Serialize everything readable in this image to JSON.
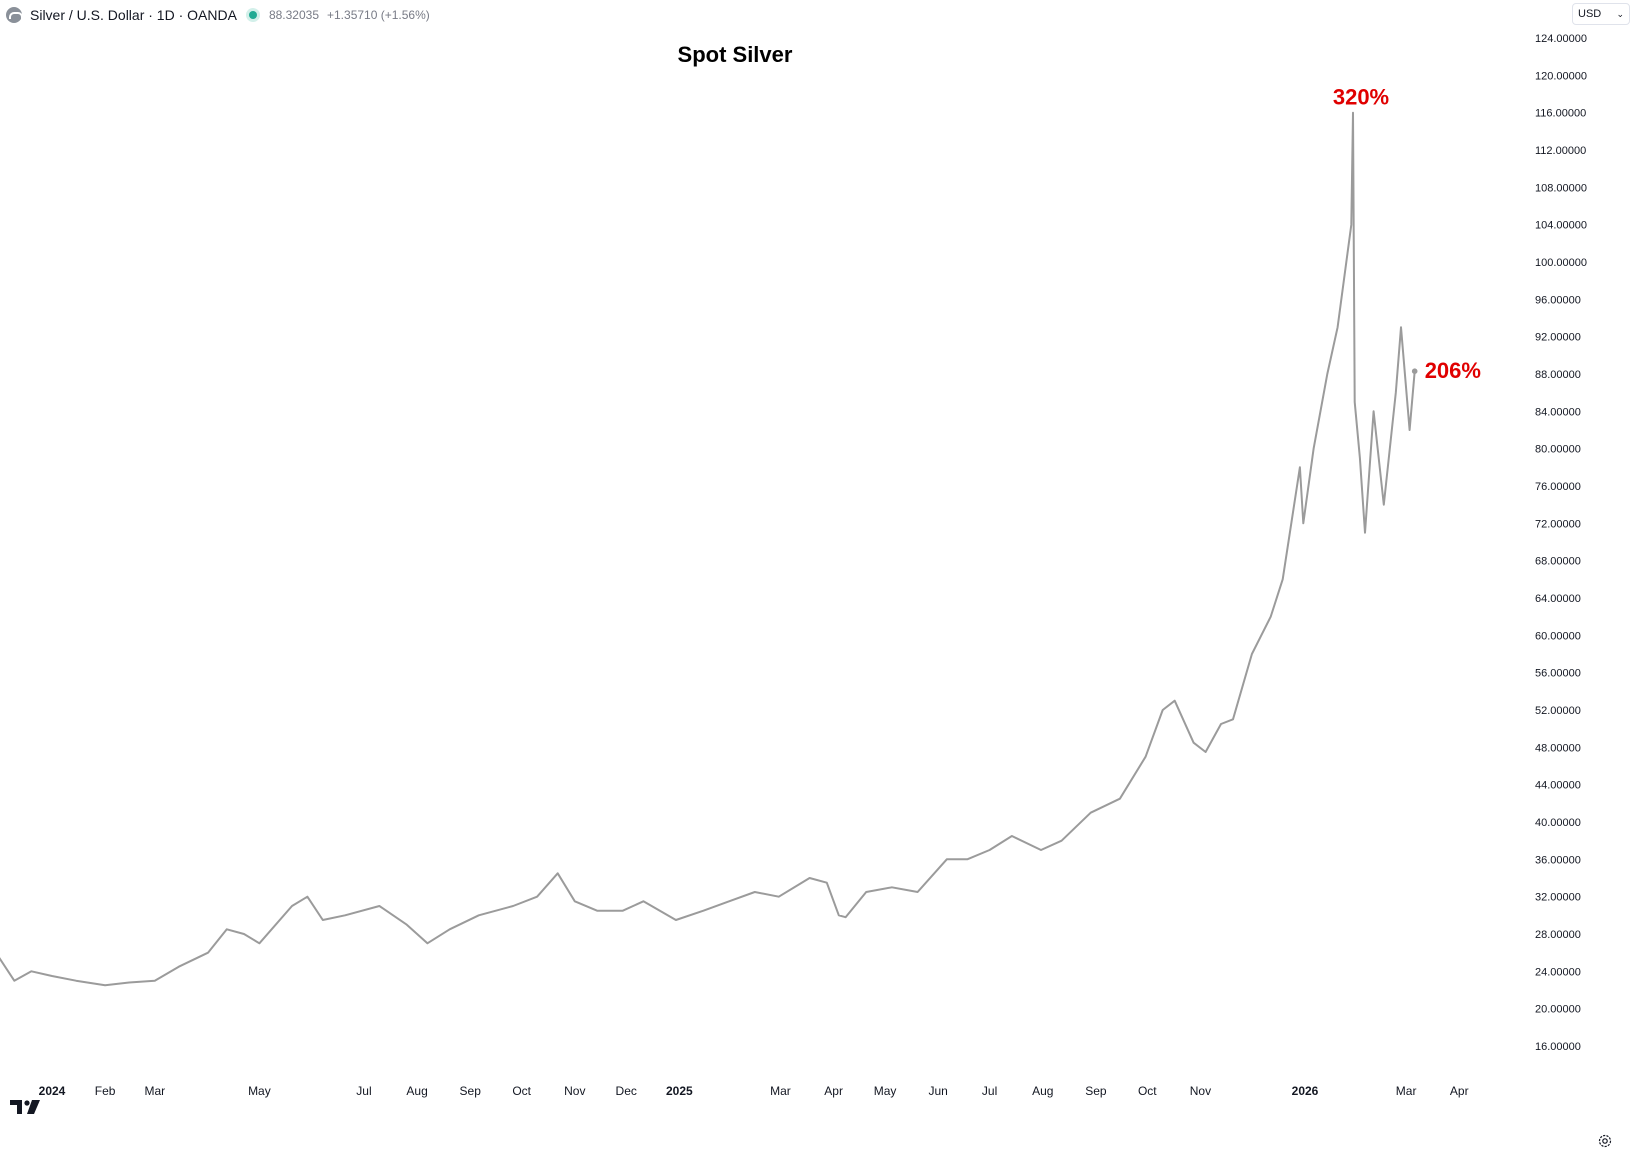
{
  "header": {
    "symbol": "Silver / U.S. Dollar · 1D · OANDA",
    "price": "88.32035",
    "change": "+1.35710 (+1.56%)",
    "status_color": "#22ab94"
  },
  "currency_select": {
    "value": "USD"
  },
  "icons": [
    "silver-logo-icon",
    "market-open-dot-icon",
    "chevron-down-icon",
    "tradingview-logo-icon",
    "settings-gear-icon"
  ],
  "chart_data": {
    "type": "line",
    "title": "Spot Silver",
    "line_color": "#9b9b9b",
    "ylim": [
      13.5,
      126
    ],
    "y_ticks": [
      "16.00000",
      "20.00000",
      "24.00000",
      "28.00000",
      "32.00000",
      "36.00000",
      "40.00000",
      "44.00000",
      "48.00000",
      "52.00000",
      "56.00000",
      "60.00000",
      "64.00000",
      "68.00000",
      "72.00000",
      "76.00000",
      "80.00000",
      "84.00000",
      "88.00000",
      "92.00000",
      "96.00000",
      "100.00000",
      "104.00000",
      "108.00000",
      "112.00000",
      "116.00000",
      "120.00000",
      "124.00000"
    ],
    "x_ticks": [
      {
        "label": "2024",
        "date": "2024-01-01",
        "bold": true
      },
      {
        "label": "Feb",
        "date": "2024-02-01",
        "bold": false
      },
      {
        "label": "Mar",
        "date": "2024-03-01",
        "bold": false
      },
      {
        "label": "May",
        "date": "2024-05-01",
        "bold": false
      },
      {
        "label": "Jul",
        "date": "2024-07-01",
        "bold": false
      },
      {
        "label": "Aug",
        "date": "2024-08-01",
        "bold": false
      },
      {
        "label": "Sep",
        "date": "2024-09-01",
        "bold": false
      },
      {
        "label": "Oct",
        "date": "2024-10-01",
        "bold": false
      },
      {
        "label": "Nov",
        "date": "2024-11-01",
        "bold": false
      },
      {
        "label": "Dec",
        "date": "2024-12-01",
        "bold": false
      },
      {
        "label": "2025",
        "date": "2025-01-01",
        "bold": true
      },
      {
        "label": "Mar",
        "date": "2025-03-01",
        "bold": false
      },
      {
        "label": "Apr",
        "date": "2025-04-01",
        "bold": false
      },
      {
        "label": "May",
        "date": "2025-05-01",
        "bold": false
      },
      {
        "label": "Jun",
        "date": "2025-06-01",
        "bold": false
      },
      {
        "label": "Jul",
        "date": "2025-07-01",
        "bold": false
      },
      {
        "label": "Aug",
        "date": "2025-08-01",
        "bold": false
      },
      {
        "label": "Sep",
        "date": "2025-09-01",
        "bold": false
      },
      {
        "label": "Oct",
        "date": "2025-10-01",
        "bold": false
      },
      {
        "label": "Nov",
        "date": "2025-11-01",
        "bold": false
      },
      {
        "label": "2026",
        "date": "2026-01-01",
        "bold": true
      },
      {
        "label": "Mar",
        "date": "2026-03-01",
        "bold": false
      },
      {
        "label": "Apr",
        "date": "2026-04-01",
        "bold": false
      }
    ],
    "series": [
      {
        "x": [
          "2023-12-01",
          "2023-12-10",
          "2023-12-20",
          "2024-01-01",
          "2024-01-15",
          "2024-02-01",
          "2024-02-15",
          "2024-03-01",
          "2024-03-15",
          "2024-04-01",
          "2024-04-12",
          "2024-04-22",
          "2024-05-01",
          "2024-05-20",
          "2024-05-29",
          "2024-06-07",
          "2024-06-20",
          "2024-07-10",
          "2024-07-26",
          "2024-08-07",
          "2024-08-20",
          "2024-09-06",
          "2024-09-26",
          "2024-10-10",
          "2024-10-22",
          "2024-11-01",
          "2024-11-14",
          "2024-11-29",
          "2024-12-11",
          "2024-12-30",
          "2025-01-15",
          "2025-01-30",
          "2025-02-14",
          "2025-02-28",
          "2025-03-18",
          "2025-03-28",
          "2025-04-04",
          "2025-04-08",
          "2025-04-20",
          "2025-05-05",
          "2025-05-20",
          "2025-06-06",
          "2025-06-18",
          "2025-07-01",
          "2025-07-14",
          "2025-07-31",
          "2025-08-12",
          "2025-08-29",
          "2025-09-15",
          "2025-09-30",
          "2025-10-10",
          "2025-10-17",
          "2025-10-28",
          "2025-11-04",
          "2025-11-13",
          "2025-11-20",
          "2025-12-01",
          "2025-12-12",
          "2025-12-19",
          "2025-12-29",
          "2025-12-31",
          "2026-01-06",
          "2026-01-14",
          "2026-01-20",
          "2026-01-28",
          "2026-01-29",
          "2026-01-30",
          "2026-02-02",
          "2026-02-05",
          "2026-02-10",
          "2026-02-16",
          "2026-02-23",
          "2026-02-26",
          "2026-03-03",
          "2026-03-06"
        ],
        "y": [
          25.5,
          23.0,
          24.0,
          23.5,
          23.0,
          22.5,
          22.8,
          23.0,
          24.5,
          26.0,
          28.5,
          28.0,
          27.0,
          31.0,
          32.0,
          29.5,
          30.0,
          31.0,
          29.0,
          27.0,
          28.5,
          30.0,
          31.0,
          32.0,
          34.5,
          31.5,
          30.5,
          30.5,
          31.5,
          29.5,
          30.5,
          31.5,
          32.5,
          32.0,
          34.0,
          33.5,
          30.0,
          29.8,
          32.5,
          33.0,
          32.5,
          36.0,
          36.0,
          37.0,
          38.5,
          37.0,
          38.0,
          41.0,
          42.5,
          47.0,
          52.0,
          53.0,
          48.5,
          47.5,
          50.5,
          51.0,
          58.0,
          62.0,
          66.0,
          78.0,
          72.0,
          80.0,
          88.0,
          93.0,
          104.0,
          116.0,
          85.0,
          79.0,
          71.0,
          84.0,
          74.0,
          86.0,
          93.0,
          82.0,
          88.3
        ]
      }
    ],
    "annotations": [
      {
        "text": "320%",
        "x": "2026-01-29",
        "y": 116.0,
        "color": "#e00000"
      },
      {
        "text": "206%",
        "x": "2026-03-06",
        "y": 88.3,
        "color": "#e00000"
      }
    ]
  }
}
